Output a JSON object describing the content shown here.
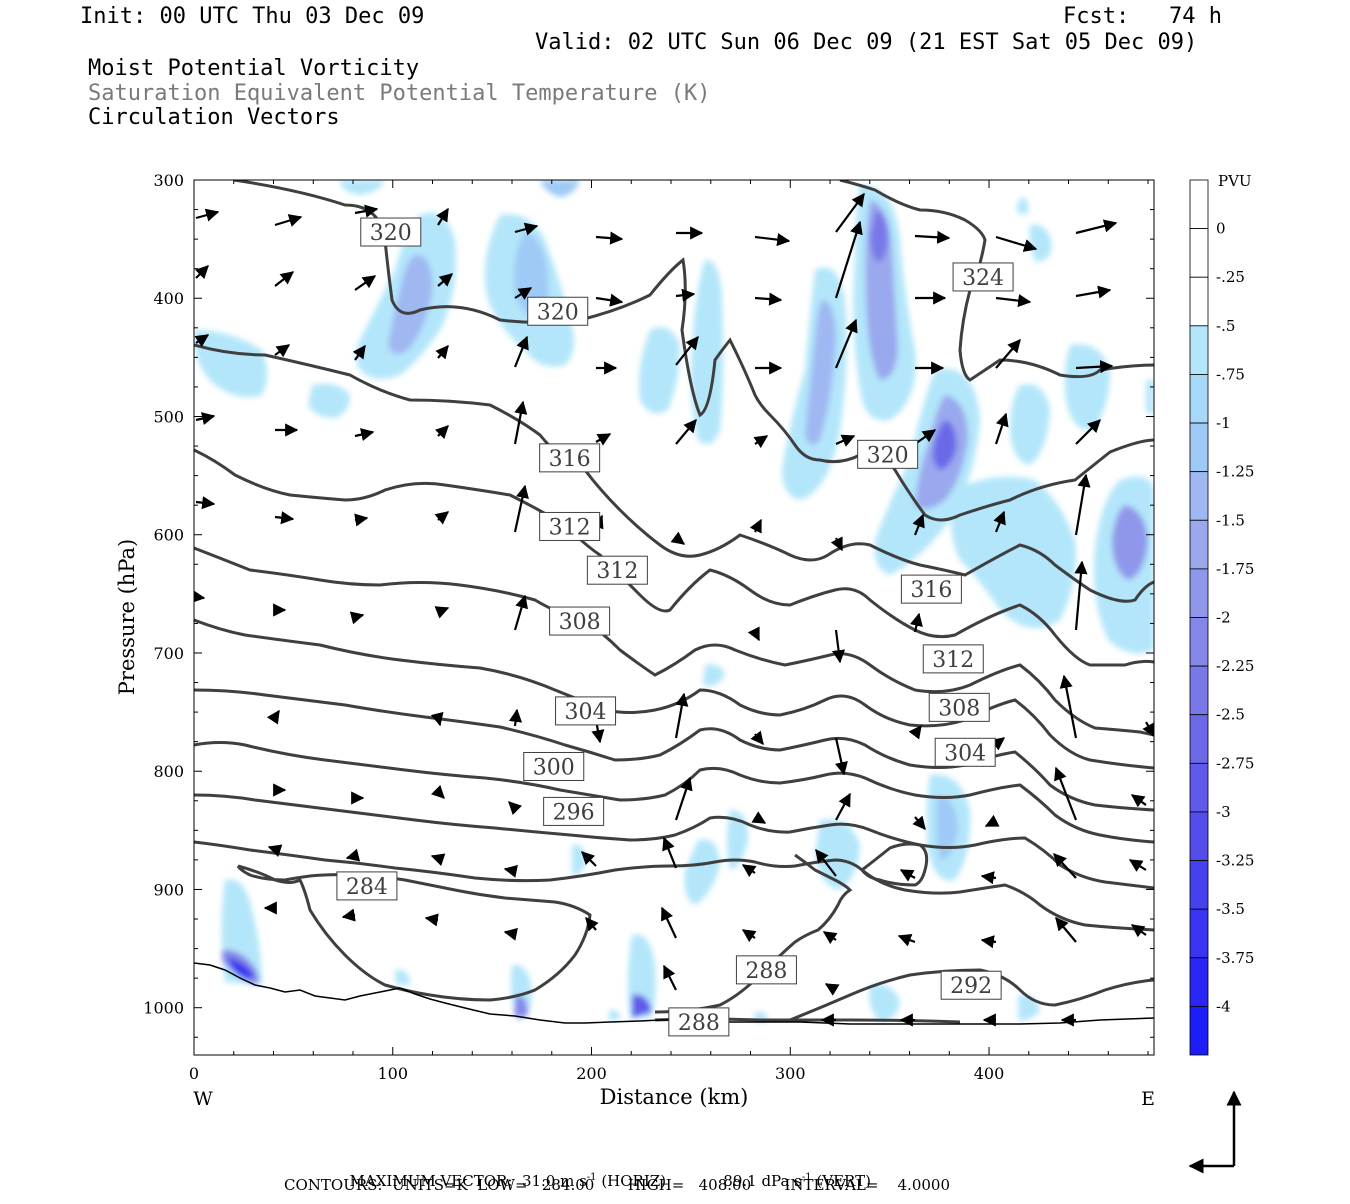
{
  "header": {
    "init": "Init: 00 UTC Thu 03 Dec 09",
    "fcst": "Fcst:   74 h",
    "valid": "Valid: 02 UTC Sun 06 Dec 09 (21 EST Sat 05 Dec 09)",
    "field1": "Moist Potential Vorticity",
    "field2": "Saturation Equivalent Potential Temperature (K)",
    "field3": "Circulation Vectors"
  },
  "footer": {
    "max_vector_label": "MAXIMUM VECTOR:",
    "max_horiz": "31.0 m s",
    "horiz_tag": "(HORIZ)",
    "max_vert": "89.1 dPa s",
    "vert_tag": "(VERT)",
    "exp": "-1",
    "contours": "CONTOURS:  UNITS=K  LOW=   284.00       HIGH=   408.00       INTERVAL=    4.0000"
  },
  "colors": {
    "contour": "#3f3f3f",
    "pv_shades": [
      "#ffffff",
      "#ffffff",
      "#b3e6fa",
      "#a6d8f8",
      "#9fcaf6",
      "#9fb8f2",
      "#9aa8ee",
      "#8f97ea",
      "#8487e8",
      "#7978e8",
      "#6b69e8",
      "#5f5ae9",
      "#524deb",
      "#4641ee",
      "#3834f1",
      "#2a26f5",
      "#1d1df8"
    ]
  },
  "chart_data": {
    "type": "contour",
    "xlabel": "Distance (km)",
    "ylabel": "Pressure (hPa)",
    "xlim": [
      0,
      483
    ],
    "ylim": [
      1040,
      300
    ],
    "x_ticks": [
      "0",
      "100",
      "200",
      "300",
      "400"
    ],
    "y_ticks": [
      "300",
      "400",
      "500",
      "600",
      "700",
      "800",
      "900",
      "1000"
    ],
    "x_end_labels": {
      "left": "W",
      "right": "E"
    },
    "colorbar": {
      "title": "PVU",
      "labels": [
        "0",
        "-.25",
        "-.5",
        "-.75",
        "-1",
        "-1.25",
        "-1.5",
        "-1.75",
        "-2",
        "-2.25",
        "-2.5",
        "-2.75",
        "-3",
        "-3.25",
        "-3.5",
        "-3.75",
        "-4"
      ]
    },
    "contour_labels": [
      {
        "text": "320",
        "x": 99,
        "p": 344
      },
      {
        "text": "320",
        "x": 183,
        "p": 411
      },
      {
        "text": "324",
        "x": 397,
        "p": 382
      },
      {
        "text": "316",
        "x": 189,
        "p": 535
      },
      {
        "text": "320",
        "x": 349,
        "p": 532
      },
      {
        "text": "312",
        "x": 189,
        "p": 593
      },
      {
        "text": "312",
        "x": 213,
        "p": 630
      },
      {
        "text": "316",
        "x": 371,
        "p": 646
      },
      {
        "text": "308",
        "x": 194,
        "p": 673
      },
      {
        "text": "312",
        "x": 382,
        "p": 705
      },
      {
        "text": "304",
        "x": 197,
        "p": 749
      },
      {
        "text": "308",
        "x": 385,
        "p": 746
      },
      {
        "text": "300",
        "x": 181,
        "p": 796
      },
      {
        "text": "304",
        "x": 388,
        "p": 784
      },
      {
        "text": "296",
        "x": 191,
        "p": 834
      },
      {
        "text": "284",
        "x": 87,
        "p": 897
      },
      {
        "text": "288",
        "x": 288,
        "p": 968
      },
      {
        "text": "292",
        "x": 391,
        "p": 981
      },
      {
        "text": "288",
        "x": 254,
        "p": 1012
      }
    ]
  }
}
